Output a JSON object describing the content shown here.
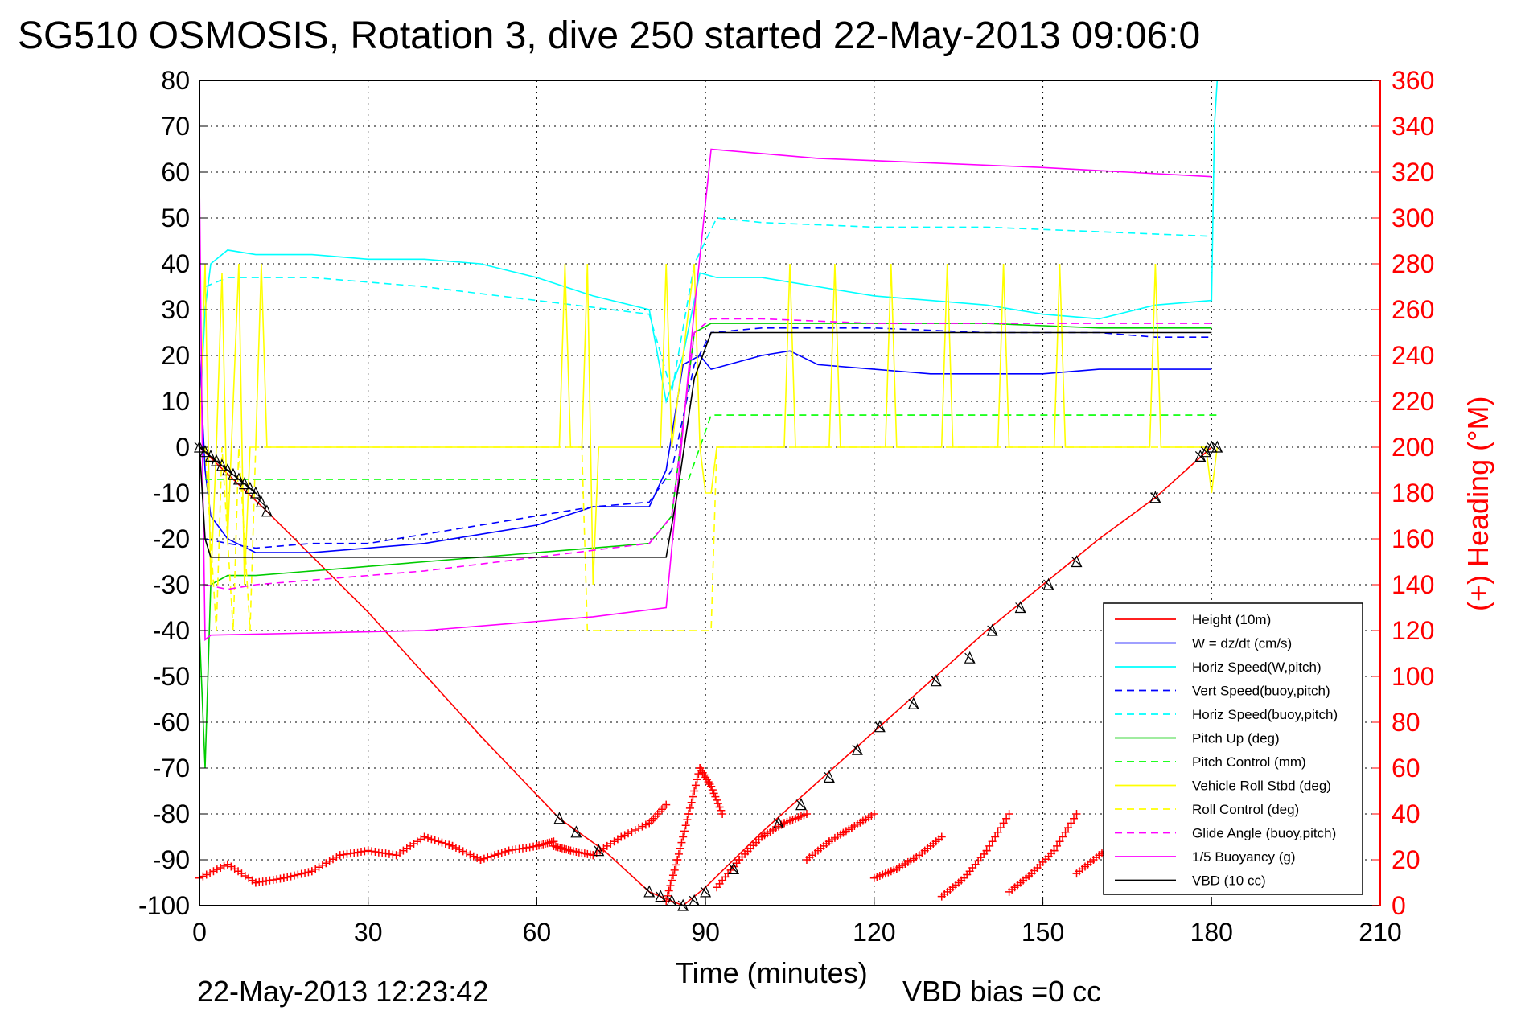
{
  "chart_data": {
    "type": "line",
    "title": "SG510 OSMOSIS, Rotation 3, dive 250 started 22-May-2013 09:06:0",
    "xlabel": "Time (minutes)",
    "ylabel_right": "(+) Heading (°M)",
    "xlim": [
      0,
      210
    ],
    "ylim": [
      -100,
      80
    ],
    "ylim_right": [
      0,
      360
    ],
    "x_ticks": [
      "0",
      "30",
      "60",
      "90",
      "120",
      "150",
      "180",
      "210"
    ],
    "y_ticks": [
      "80",
      "70",
      "60",
      "50",
      "40",
      "30",
      "20",
      "10",
      "0",
      "-10",
      "-20",
      "-30",
      "-40",
      "-50",
      "-60",
      "-70",
      "-80",
      "-90",
      "-100"
    ],
    "y_ticks_right": [
      "360",
      "340",
      "320",
      "300",
      "280",
      "260",
      "240",
      "220",
      "200",
      "180",
      "160",
      "140",
      "120",
      "100",
      "80",
      "60",
      "40",
      "20",
      "0"
    ],
    "grid": true,
    "legend_position": "bottom-right",
    "footer_date": "22-May-2013 12:23:42",
    "footer_vbd": "VBD bias =0 cc",
    "series": [
      {
        "name": "Height (10m)",
        "color": "#ff0000",
        "style": "solid",
        "x": [
          0,
          12,
          30,
          50,
          64,
          72,
          80,
          86,
          90,
          100,
          120,
          140,
          160,
          170,
          180
        ],
        "y": [
          0,
          -14,
          -36,
          -63,
          -81,
          -88,
          -97,
          -100,
          -96,
          -84,
          -62,
          -40,
          -20,
          -11,
          0
        ]
      },
      {
        "name": "W = dz/dt (cm/s)",
        "color": "#0000ff",
        "style": "solid",
        "x": [
          0,
          1,
          2,
          5,
          10,
          20,
          30,
          40,
          50,
          60,
          65,
          70,
          80,
          83,
          86,
          89,
          91,
          100,
          105,
          110,
          120,
          130,
          140,
          150,
          160,
          170,
          180
        ],
        "y": [
          20,
          -5,
          -15,
          -20,
          -23,
          -23,
          -22,
          -21,
          -19,
          -17,
          -15,
          -13,
          -13,
          -5,
          18,
          20,
          17,
          20,
          21,
          18,
          17,
          16,
          16,
          16,
          17,
          17,
          17
        ]
      },
      {
        "name": "Horiz Speed(W,pitch)",
        "color": "#00ffff",
        "style": "solid",
        "x": [
          0,
          1,
          2,
          5,
          10,
          20,
          30,
          40,
          50,
          60,
          70,
          80,
          83,
          86,
          89,
          92,
          100,
          110,
          120,
          130,
          140,
          150,
          160,
          170,
          180,
          180.5,
          181
        ],
        "y": [
          5,
          30,
          40,
          43,
          42,
          42,
          41,
          41,
          40,
          37,
          33,
          30,
          10,
          20,
          38,
          37,
          37,
          35,
          33,
          32,
          31,
          29,
          28,
          31,
          32,
          70,
          80
        ]
      },
      {
        "name": "Vert Speed(buoy,pitch)",
        "color": "#0000ff",
        "style": "dashed",
        "x": [
          1,
          5,
          10,
          20,
          30,
          40,
          50,
          60,
          70,
          80,
          84,
          88,
          91,
          100,
          120,
          140,
          160,
          170,
          180
        ],
        "y": [
          -20,
          -21,
          -22,
          -21,
          -21,
          -19,
          -17,
          -15,
          -13,
          -12,
          -5,
          18,
          25,
          26,
          26,
          25,
          25,
          24,
          24
        ]
      },
      {
        "name": "Horiz Speed(buoy,pitch)",
        "color": "#00ffff",
        "style": "dashed",
        "x": [
          1,
          5,
          20,
          40,
          60,
          80,
          84,
          88,
          92,
          100,
          120,
          140,
          160,
          180
        ],
        "y": [
          35,
          37,
          37,
          35,
          32,
          29,
          12,
          40,
          50,
          49,
          48,
          48,
          47,
          46
        ]
      },
      {
        "name": "Pitch Up (deg)",
        "color": "#00cc00",
        "style": "solid",
        "x": [
          0,
          1,
          2,
          5,
          10,
          20,
          40,
          60,
          80,
          84,
          88,
          91,
          100,
          120,
          140,
          160,
          180
        ],
        "y": [
          -40,
          -70,
          -30,
          -28,
          -28,
          -27,
          -25,
          -23,
          -21,
          -15,
          25,
          27,
          27,
          27,
          27,
          26,
          26
        ]
      },
      {
        "name": "Pitch Control (mm)",
        "color": "#00ff00",
        "style": "dashed",
        "x": [
          1,
          85,
          87,
          91,
          181
        ],
        "y": [
          -7,
          -7,
          -7,
          7,
          7
        ]
      },
      {
        "name": "Vehicle Roll Stbd (deg)",
        "color": "#ffff00",
        "style": "solid",
        "x": [
          0,
          1,
          2,
          3,
          4,
          5,
          7,
          8,
          9,
          10,
          11,
          12,
          13,
          20,
          40,
          60,
          64,
          65,
          66,
          68,
          69,
          70,
          71,
          72,
          73,
          80,
          82,
          83,
          84,
          88,
          89,
          90,
          91,
          92,
          95,
          100,
          104,
          105,
          106,
          110,
          112,
          113,
          114,
          120,
          122,
          123,
          124,
          130,
          132,
          133,
          134,
          140,
          142,
          143,
          144,
          150,
          152,
          153,
          154,
          160,
          165,
          169,
          170,
          171,
          175,
          179,
          180,
          181
        ],
        "y": [
          0,
          40,
          -30,
          0,
          38,
          -20,
          40,
          -30,
          0,
          0,
          40,
          0,
          0,
          0,
          0,
          0,
          0,
          40,
          0,
          0,
          40,
          -30,
          0,
          0,
          0,
          0,
          0,
          40,
          0,
          40,
          0,
          -10,
          -10,
          0,
          0,
          0,
          0,
          40,
          0,
          0,
          0,
          40,
          0,
          0,
          0,
          40,
          0,
          0,
          0,
          40,
          0,
          0,
          0,
          40,
          0,
          0,
          0,
          40,
          0,
          0,
          0,
          0,
          40,
          0,
          0,
          0,
          -10,
          0
        ]
      },
      {
        "name": "Roll Control (deg)",
        "color": "#ffff00",
        "style": "dashed",
        "x": [
          1,
          3,
          4,
          6,
          7,
          9,
          10,
          68,
          69,
          91,
          92,
          100,
          180
        ],
        "y": [
          0,
          -40,
          0,
          -40,
          0,
          -40,
          0,
          0,
          -40,
          -40,
          0,
          0,
          0
        ]
      },
      {
        "name": "Glide Angle (buoy,pitch)",
        "color": "#ff00ff",
        "style": "dashed",
        "x": [
          1,
          5,
          10,
          20,
          40,
          60,
          80,
          84,
          88,
          91,
          100,
          120,
          140,
          160,
          180
        ],
        "y": [
          -30,
          -31,
          -30,
          -29,
          -27,
          -24,
          -21,
          -15,
          25,
          28,
          28,
          27,
          27,
          27,
          27
        ]
      },
      {
        "name": "1/5 Buoyancy (g)",
        "color": "#ff00ff",
        "style": "solid",
        "x": [
          0,
          0.5,
          1,
          2,
          40,
          70,
          83,
          88,
          91,
          110,
          130,
          150,
          180
        ],
        "y": [
          58,
          0,
          -42,
          -41,
          -40,
          -37,
          -35,
          30,
          65,
          63,
          62,
          61,
          59
        ]
      },
      {
        "name": "VBD (10 cc)",
        "color": "#000000",
        "style": "solid",
        "x": [
          0,
          1,
          2,
          20,
          40,
          60,
          83,
          85,
          88,
          91,
          100,
          120,
          140,
          160,
          180
        ],
        "y": [
          0,
          -20,
          -24,
          -24,
          -24,
          -24,
          -24,
          -10,
          15,
          25,
          25,
          25,
          25,
          25,
          25
        ]
      }
    ],
    "heading": {
      "name": "Heading",
      "color": "#ff0000",
      "marker": "+",
      "segments": [
        {
          "x": [
            0,
            5,
            10,
            15,
            20,
            25,
            30,
            35,
            40,
            45,
            50,
            55,
            60,
            63
          ],
          "y": [
            12,
            18,
            10,
            12,
            15,
            22,
            24,
            22,
            30,
            26,
            20,
            24,
            26,
            28
          ]
        },
        {
          "x": [
            63,
            66,
            70,
            75,
            80,
            83
          ],
          "y": [
            26,
            24,
            22,
            30,
            36,
            44
          ]
        },
        {
          "x": [
            83,
            85,
            87,
            89,
            91,
            93
          ],
          "y": [
            2,
            20,
            40,
            60,
            52,
            40
          ]
        },
        {
          "x": [
            92,
            96,
            100,
            104,
            108
          ],
          "y": [
            8,
            20,
            30,
            36,
            40
          ]
        },
        {
          "x": [
            108,
            112,
            116,
            120
          ],
          "y": [
            20,
            28,
            34,
            40
          ]
        },
        {
          "x": [
            120,
            124,
            128,
            132
          ],
          "y": [
            12,
            16,
            22,
            30
          ]
        },
        {
          "x": [
            132,
            136,
            140,
            144
          ],
          "y": [
            4,
            12,
            24,
            40
          ]
        },
        {
          "x": [
            144,
            148,
            152,
            156
          ],
          "y": [
            6,
            14,
            24,
            40
          ]
        },
        {
          "x": [
            156,
            160,
            164,
            168,
            172,
            176,
            180
          ],
          "y": [
            14,
            22,
            28,
            20,
            12,
            22,
            30
          ]
        }
      ]
    },
    "height_markers": {
      "x": [
        0,
        1,
        2,
        3,
        4,
        5,
        6,
        7,
        8,
        9,
        10,
        11,
        12,
        64,
        67,
        71,
        80,
        82,
        84,
        86,
        88,
        90,
        95,
        103,
        107,
        112,
        117,
        121,
        127,
        131,
        137,
        141,
        146,
        151,
        156,
        170,
        178,
        179,
        180,
        181
      ],
      "y": [
        0,
        -1,
        -2,
        -3,
        -4,
        -5,
        -6,
        -7,
        -8,
        -9,
        -10,
        -12,
        -14,
        -81,
        -84,
        -88,
        -97,
        -98,
        -99,
        -100,
        -99,
        -97,
        -92,
        -82,
        -78,
        -72,
        -66,
        -61,
        -56,
        -51,
        -46,
        -40,
        -35,
        -30,
        -25,
        -11,
        -2,
        -1,
        0,
        0
      ]
    }
  }
}
